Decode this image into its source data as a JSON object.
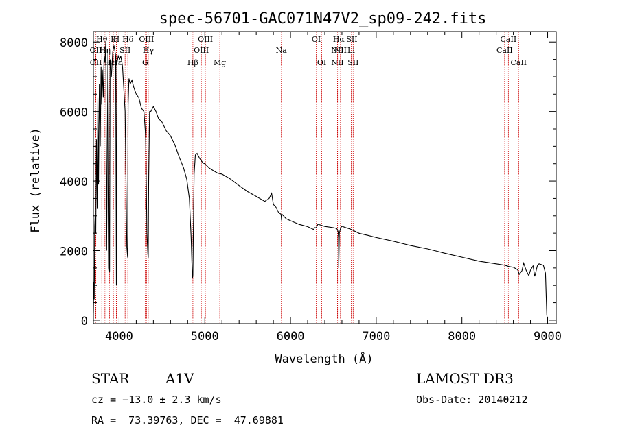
{
  "chart_data": {
    "type": "line",
    "title": "spec-56701-GAC071N47V2_sp09-242.fits",
    "xlabel": "Wavelength (Å)",
    "ylabel": "Flux (relative)",
    "xlim": [
      3700,
      9100
    ],
    "ylim": [
      -100,
      8300
    ],
    "x_ticks": [
      4000,
      5000,
      6000,
      7000,
      8000,
      9000
    ],
    "y_ticks": [
      0,
      2000,
      4000,
      6000,
      8000
    ],
    "x_tick_labels": [
      "4000",
      "5000",
      "6000",
      "7000",
      "8000",
      "9000"
    ],
    "y_tick_labels": [
      "0",
      "2000",
      "4000",
      "6000",
      "8000"
    ],
    "line_color": "#000000",
    "marker_color": "#cc0000",
    "series": [
      {
        "name": "flux",
        "x": [
          3700,
          3705,
          3710,
          3715,
          3720,
          3728,
          3735,
          3745,
          3752,
          3760,
          3770,
          3780,
          3790,
          3797,
          3805,
          3815,
          3825,
          3835,
          3845,
          3855,
          3870,
          3885,
          3889,
          3895,
          3910,
          3925,
          3940,
          3960,
          3968,
          3975,
          3990,
          4005,
          4020,
          4040,
          4070,
          4090,
          4100,
          4105,
          4115,
          4130,
          4150,
          4170,
          4200,
          4230,
          4260,
          4290,
          4310,
          4325,
          4335,
          4340,
          4345,
          4355,
          4370,
          4400,
          4430,
          4460,
          4500,
          4550,
          4600,
          4650,
          4700,
          4750,
          4790,
          4820,
          4840,
          4852,
          4856,
          4861,
          4866,
          4875,
          4890,
          4910,
          4940,
          4980,
          5000,
          5050,
          5100,
          5150,
          5200,
          5300,
          5400,
          5500,
          5600,
          5700,
          5750,
          5780,
          5800,
          5830,
          5860,
          5890,
          5893,
          5896,
          5900,
          5950,
          6000,
          6100,
          6200,
          6270,
          6280,
          6300,
          6320,
          6400,
          6500,
          6540,
          6555,
          6560,
          6563,
          6566,
          6570,
          6585,
          6600,
          6650,
          6700,
          6800,
          6900,
          7000,
          7200,
          7400,
          7600,
          7800,
          8000,
          8200,
          8400,
          8500,
          8550,
          8600,
          8650,
          8670,
          8700,
          8720,
          8750,
          8780,
          8800,
          8830,
          8850,
          8880,
          8900,
          8950,
          8975,
          8990,
          9000
        ],
        "values": [
          200,
          1100,
          600,
          2700,
          3000,
          2500,
          5200,
          3200,
          6400,
          3900,
          6800,
          5000,
          7300,
          6200,
          7200,
          6400,
          7600,
          7400,
          8000,
          2000,
          7800,
          1500,
          1400,
          7500,
          7000,
          7700,
          7900,
          7600,
          1000,
          7400,
          7600,
          7500,
          7600,
          7300,
          6000,
          2100,
          1800,
          6200,
          6950,
          6800,
          6900,
          6700,
          6500,
          6400,
          6100,
          6000,
          5300,
          2500,
          1900,
          1800,
          4000,
          6000,
          6000,
          6150,
          6000,
          5800,
          5700,
          5450,
          5300,
          5050,
          4700,
          4400,
          4050,
          3500,
          2400,
          1450,
          1200,
          1300,
          2400,
          4200,
          4750,
          4800,
          4650,
          4520,
          4500,
          4380,
          4300,
          4230,
          4200,
          4060,
          3870,
          3700,
          3560,
          3420,
          3500,
          3650,
          3330,
          3250,
          3100,
          3050,
          2950,
          2870,
          3050,
          2920,
          2860,
          2760,
          2690,
          2610,
          2660,
          2660,
          2760,
          2700,
          2660,
          2640,
          2550,
          2380,
          1500,
          1950,
          2500,
          2660,
          2700,
          2660,
          2620,
          2500,
          2440,
          2380,
          2270,
          2150,
          2050,
          1930,
          1810,
          1700,
          1620,
          1580,
          1540,
          1520,
          1450,
          1320,
          1420,
          1640,
          1430,
          1280,
          1440,
          1560,
          1260,
          1560,
          1620,
          1580,
          1350,
          150,
          0
        ]
      }
    ],
    "line_markers": [
      {
        "label": "OII",
        "x": 3727,
        "row": 2
      },
      {
        "label": "OII",
        "x": 3729,
        "row": 3
      },
      {
        "label": "Hθ",
        "x": 3798,
        "row": 1
      },
      {
        "label": "Hη",
        "x": 3835,
        "row": 2
      },
      {
        "label": "Hε",
        "x": 3889,
        "row": 3
      },
      {
        "label": "Hε",
        "x": 3970,
        "row": 3
      },
      {
        "label": "K",
        "x": 3934,
        "row": 1
      },
      {
        "label": "H",
        "x": 3968,
        "row": 1
      },
      {
        "label": "SII",
        "x": 4070,
        "row": 2
      },
      {
        "label": "Hδ",
        "x": 4102,
        "row": 1
      },
      {
        "label": "OIII",
        "x": 4320,
        "row": 1
      },
      {
        "label": "Hγ",
        "x": 4340,
        "row": 2
      },
      {
        "label": "G",
        "x": 4304,
        "row": 3
      },
      {
        "label": "Hβ",
        "x": 4861,
        "row": 3
      },
      {
        "label": "OIII",
        "x": 4959,
        "row": 2
      },
      {
        "label": "OIII",
        "x": 5007,
        "row": 1
      },
      {
        "label": "Mg",
        "x": 5175,
        "row": 3
      },
      {
        "label": "Na",
        "x": 5893,
        "row": 2
      },
      {
        "label": "OI",
        "x": 6300,
        "row": 1
      },
      {
        "label": "OI",
        "x": 6364,
        "row": 3
      },
      {
        "label": "NII",
        "x": 6548,
        "row": 2
      },
      {
        "label": "NII",
        "x": 6548,
        "row": 3
      },
      {
        "label": "Hα",
        "x": 6563,
        "row": 1
      },
      {
        "label": "NII",
        "x": 6583,
        "row": 2
      },
      {
        "label": "Li",
        "x": 6708,
        "row": 2
      },
      {
        "label": "SII",
        "x": 6716,
        "row": 1
      },
      {
        "label": "SII",
        "x": 6731,
        "row": 3
      },
      {
        "label": "CaII",
        "x": 8498,
        "row": 2
      },
      {
        "label": "CaII",
        "x": 8542,
        "row": 1
      },
      {
        "label": "CaII",
        "x": 8662,
        "row": 3
      }
    ]
  },
  "info": {
    "class": "STAR",
    "subclass": "A1V",
    "survey": "LAMOST DR3",
    "cz": "cz = −13.0 ± 2.3 km/s",
    "obs_date": "Obs-Date: 20140212",
    "coords": "RA =  73.39763, DEC =  47.69881"
  }
}
